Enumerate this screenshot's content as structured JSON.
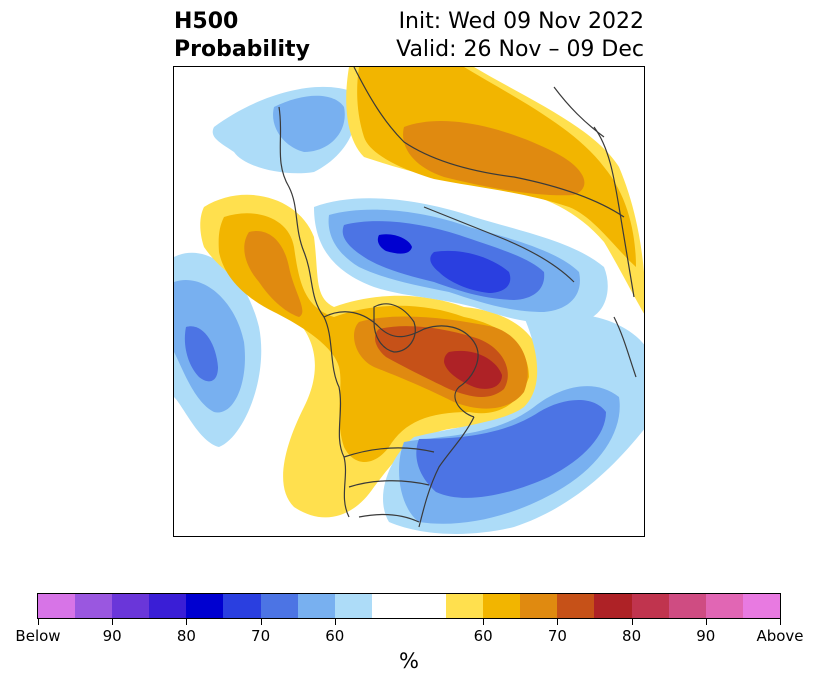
{
  "title": {
    "left_line1": "H500",
    "left_line2": "Probability",
    "right_line1": "Init: Wed 09 Nov 2022",
    "right_line2": "Valid: 26 Nov – 09 Dec"
  },
  "colorbar": {
    "label": "%",
    "colors": [
      "#d774e7",
      "#9a57e0",
      "#6a36d9",
      "#3a1ed6",
      "#0000d0",
      "#2a3fe0",
      "#4c74e4",
      "#78b0f0",
      "#addcf8",
      "#ffffff",
      "#ffe04e",
      "#f2b500",
      "#e08a10",
      "#c65118",
      "#ae2226",
      "#c0344e",
      "#cf4c82",
      "#e166b4",
      "#e87ae1"
    ],
    "tick_labels": [
      "Below",
      "90",
      "80",
      "70",
      "60",
      "60",
      "70",
      "80",
      "90",
      "Above"
    ]
  },
  "map": {
    "colors": {
      "below_60": "#addcf8",
      "below_70": "#78b0f0",
      "below_80": "#4c74e4",
      "below_90": "#2a3fe0",
      "below_95": "#0000d0",
      "above_60": "#ffe04e",
      "above_70": "#f2b500",
      "above_80": "#e08a10",
      "above_90": "#c65118",
      "above_95": "#ae2226",
      "coast": "#3a3a3a"
    }
  }
}
